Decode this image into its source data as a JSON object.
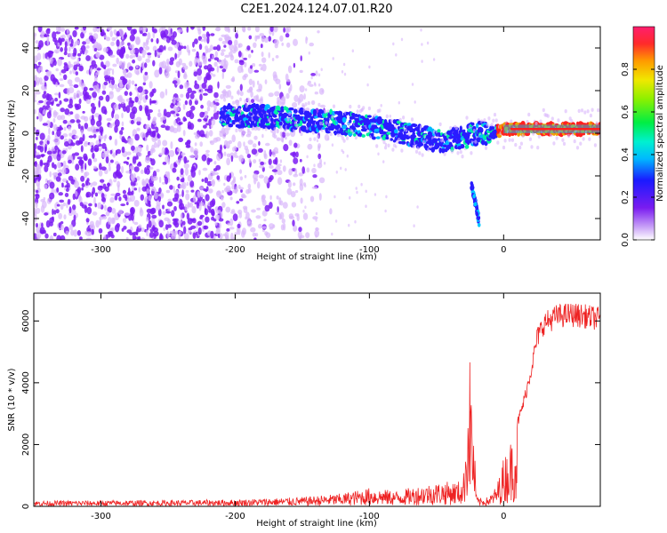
{
  "title": "C2E1.2024.124.07.01.R20",
  "chart_data": [
    {
      "type": "heatmap",
      "xlabel": "Height of straight line (km)",
      "ylabel": "Frequency (Hz)",
      "xlim": [
        -350,
        72
      ],
      "ylim": [
        -50,
        50
      ],
      "xticks": [
        -300,
        -200,
        -100,
        0
      ],
      "yticks": [
        -40,
        -20,
        0,
        20,
        40
      ],
      "colorbar": {
        "label": "Normalized spectral amplitude",
        "range": [
          0,
          1
        ],
        "ticks": [
          0.0,
          0.2,
          0.4,
          0.6,
          0.8
        ]
      },
      "colors": {
        "noise": "#7d1cf3",
        "faint": "#d8b6fb",
        "ridge": "#2a1cff",
        "peak": "#ff2020",
        "core": "#00f0a0"
      },
      "ridge_track": {
        "x": [
          -210,
          -180,
          -150,
          -120,
          -100,
          -80,
          -60,
          -45,
          -30,
          -20,
          -10,
          0,
          20,
          40,
          72
        ],
        "y": [
          8,
          8,
          6,
          5,
          3,
          1,
          -2,
          -4,
          -2,
          0,
          0,
          2,
          2,
          2,
          2
        ]
      },
      "branch_track": {
        "x": [
          -24,
          -22,
          -20,
          -18
        ],
        "y": [
          -24,
          -30,
          -36,
          -42
        ]
      },
      "noise_region_x": [
        -350,
        -145
      ]
    },
    {
      "type": "line",
      "xlabel": "Height of straight line (km)",
      "ylabel": "SNR (10 * v/v)",
      "xlim": [
        -350,
        72
      ],
      "ylim": [
        0,
        6900
      ],
      "xticks": [
        -300,
        -200,
        -100,
        0
      ],
      "yticks": [
        0,
        2000,
        4000,
        6000
      ],
      "line_color": "#ee2222",
      "envelope": {
        "x": [
          -350,
          -250,
          -200,
          -150,
          -120,
          -100,
          -80,
          -60,
          -45,
          -35,
          -30,
          -27,
          -25,
          -23,
          -20,
          -15,
          -10,
          -5,
          0,
          5,
          10,
          15,
          20,
          25,
          30,
          40,
          50,
          60,
          72
        ],
        "y": [
          180,
          200,
          220,
          300,
          420,
          600,
          500,
          700,
          800,
          800,
          900,
          3500,
          5000,
          3000,
          300,
          250,
          350,
          700,
          1600,
          2100,
          2800,
          3600,
          4600,
          5800,
          6300,
          6550,
          6600,
          6550,
          6450
        ]
      }
    }
  ]
}
